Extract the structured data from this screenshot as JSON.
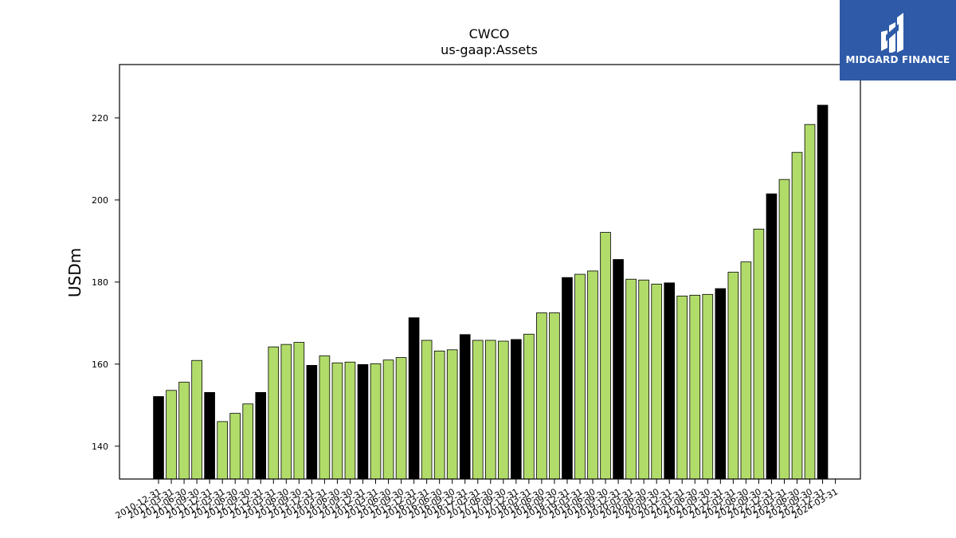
{
  "logo": {
    "brand": "MIDGARD FINANCE",
    "icon": "midgard-logo-icon"
  },
  "chart_data": {
    "type": "bar",
    "title": "CWCO",
    "subtitle": "us-gaap:Assets",
    "xlabel": "",
    "ylabel": "USDm",
    "ylim": [
      132,
      233
    ],
    "yticks": [
      140,
      160,
      180,
      200,
      220
    ],
    "grid": false,
    "colors": {
      "quarter": "#b2dc6a",
      "year_end": "#000000",
      "edge": "#000000"
    },
    "categories": [
      "2010-12-31",
      "2011-03-31",
      "2011-06-30",
      "2011-09-30",
      "2011-12-31",
      "2012-03-31",
      "2012-06-30",
      "2012-09-30",
      "2012-12-31",
      "2013-03-31",
      "2013-06-30",
      "2013-09-30",
      "2013-12-31",
      "2014-03-31",
      "2014-06-30",
      "2014-09-30",
      "2014-12-31",
      "2015-03-31",
      "2015-06-30",
      "2015-09-30",
      "2015-12-31",
      "2016-03-31",
      "2016-06-30",
      "2016-09-30",
      "2016-12-31",
      "2017-03-31",
      "2017-06-30",
      "2017-09-30",
      "2017-12-31",
      "2018-03-31",
      "2018-06-30",
      "2018-09-30",
      "2018-12-31",
      "2019-03-31",
      "2019-06-30",
      "2019-09-30",
      "2019-12-31",
      "2020-03-31",
      "2020-06-30",
      "2020-09-30",
      "2020-12-31",
      "2021-03-31",
      "2021-06-30",
      "2021-09-30",
      "2021-12-31",
      "2022-03-31",
      "2022-06-30",
      "2022-09-30",
      "2022-12-31",
      "2023-03-31",
      "2023-06-30",
      "2023-09-30",
      "2023-12-31",
      "2024-03-31"
    ],
    "values": [
      152.1,
      153.6,
      155.6,
      160.9,
      153.1,
      146.0,
      148.0,
      150.3,
      153.1,
      164.2,
      164.8,
      165.3,
      159.7,
      162.0,
      160.3,
      160.5,
      159.9,
      160.1,
      161.0,
      161.6,
      171.3,
      165.8,
      163.2,
      163.5,
      167.2,
      165.8,
      165.8,
      165.6,
      166.0,
      167.3,
      172.5,
      172.5,
      181.1,
      181.9,
      182.7,
      192.1,
      185.5,
      180.7,
      180.5,
      179.5,
      179.8,
      176.6,
      176.8,
      177.0,
      178.4,
      182.4,
      184.9,
      192.9,
      201.5,
      205.0,
      211.6,
      218.4,
      223.1,
      null
    ],
    "highlight": [
      0,
      3,
      0,
      0,
      0,
      0,
      0,
      1,
      0,
      0,
      0,
      0,
      1,
      0,
      0,
      0,
      1,
      0,
      0,
      0,
      1,
      0,
      0,
      0,
      1,
      0,
      0,
      0,
      1,
      0,
      0,
      0,
      1,
      0,
      0,
      0,
      1,
      0,
      0,
      0,
      1,
      0,
      0,
      0,
      1,
      0,
      0,
      0,
      1,
      0,
      0,
      0,
      1,
      0
    ]
  }
}
